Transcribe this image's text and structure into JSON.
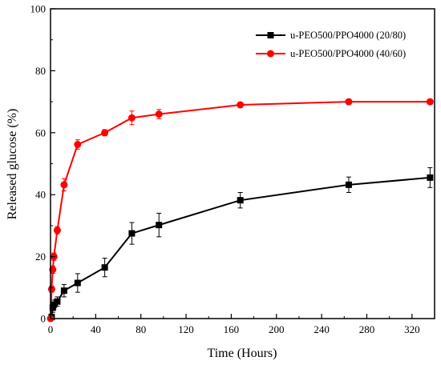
{
  "chart_data": {
    "type": "line",
    "xlabel": "Time (Hours)",
    "ylabel": "Released glucose (%)",
    "xlim": [
      0,
      340
    ],
    "ylim": [
      0,
      100
    ],
    "x_ticks": [
      0,
      40,
      80,
      120,
      160,
      200,
      240,
      280,
      320
    ],
    "y_ticks": [
      0,
      20,
      40,
      60,
      80,
      100
    ],
    "grid": false,
    "legend_position": "top-right",
    "series": [
      {
        "name": "u-PEO500/PPO4000 (20/80)",
        "color": "#000000",
        "marker": "square",
        "x": [
          1,
          2,
          3,
          6,
          12,
          24,
          48,
          72,
          96,
          168,
          264,
          336
        ],
        "y": [
          0.5,
          3.5,
          4.5,
          5.5,
          9,
          11.5,
          16.5,
          27.5,
          30.2,
          38.2,
          43.2,
          45.5
        ],
        "error": [
          0.5,
          1.5,
          1.5,
          1.5,
          2,
          3,
          3,
          3.5,
          3.8,
          2.5,
          2.5,
          3.2
        ]
      },
      {
        "name": "u-PEO500/PPO4000 (40/60)",
        "color": "#ff0000",
        "marker": "circle",
        "x": [
          0,
          1,
          2,
          3,
          6,
          12,
          24,
          48,
          72,
          96,
          168,
          264,
          336
        ],
        "y": [
          0,
          9.5,
          15.8,
          20,
          28.5,
          43.2,
          56.2,
          60,
          64.8,
          66,
          69,
          70,
          70
        ],
        "error": [
          0,
          1,
          1.2,
          1.2,
          1.2,
          2,
          1.5,
          1,
          2.2,
          1.5,
          0.8,
          0.8,
          0.8
        ]
      }
    ]
  }
}
